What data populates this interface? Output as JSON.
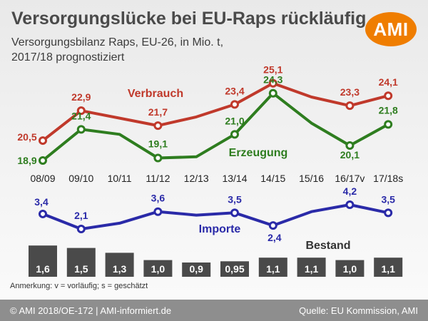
{
  "header": {
    "title": "Versorgungslücke bei EU-Raps rückläufig",
    "subtitle_line1": "Versorgungsbilanz Raps, EU-26, in Mio. t,",
    "subtitle_line2": "2017/18 prognostiziert",
    "logo_text": "AMI"
  },
  "chart_data": {
    "type": "line",
    "categories": [
      "08/09",
      "09/10",
      "10/11",
      "11/12",
      "12/13",
      "13/14",
      "14/15",
      "15/16",
      "16/17v",
      "17/18s"
    ],
    "series": [
      {
        "name": "Verbrauch",
        "color": "#c0392b",
        "values": [
          20.5,
          22.9,
          22.3,
          21.7,
          22.4,
          23.4,
          25.1,
          24.0,
          23.3,
          24.1
        ],
        "labels": [
          "20,5",
          "22,9",
          null,
          "21,7",
          null,
          "23,4",
          "25,1",
          null,
          "23,3",
          "24,1"
        ]
      },
      {
        "name": "Erzeugung",
        "color": "#2e7d1f",
        "values": [
          18.9,
          21.4,
          21.0,
          19.1,
          19.2,
          21.0,
          24.3,
          21.9,
          20.1,
          21.8
        ],
        "labels": [
          "18,9",
          "21,4",
          null,
          "19,1",
          null,
          "21,0",
          "24,3",
          null,
          "20,1",
          "21,8"
        ]
      },
      {
        "name": "Importe",
        "color": "#2a2aa8",
        "values": [
          3.4,
          2.1,
          2.6,
          3.6,
          3.3,
          3.5,
          2.4,
          3.6,
          4.2,
          3.5
        ],
        "labels": [
          "3,4",
          "2,1",
          null,
          "3,6",
          null,
          "3,5",
          "2,4",
          null,
          "4,2",
          "3,5"
        ]
      },
      {
        "name": "Bestand",
        "values": [
          1.6,
          1.5,
          1.3,
          1.0,
          0.9,
          0.95,
          1.1,
          1.1,
          1.0,
          1.1
        ],
        "labels": [
          "1,6",
          "1,5",
          "1,3",
          "1,0",
          "0,9",
          "0,95",
          "1,1",
          "1,1",
          "1,0",
          "1,1"
        ]
      }
    ],
    "colors": {
      "bar": "#4a4a4a",
      "bar_text": "#ffffff"
    }
  },
  "footnote": "Anmerkung: v = vorläufig; s = geschätzt",
  "footer": {
    "left": "© AMI 2018/OE-172 | AMI-informiert.de",
    "right": "Quelle: EU Kommission, AMI"
  }
}
